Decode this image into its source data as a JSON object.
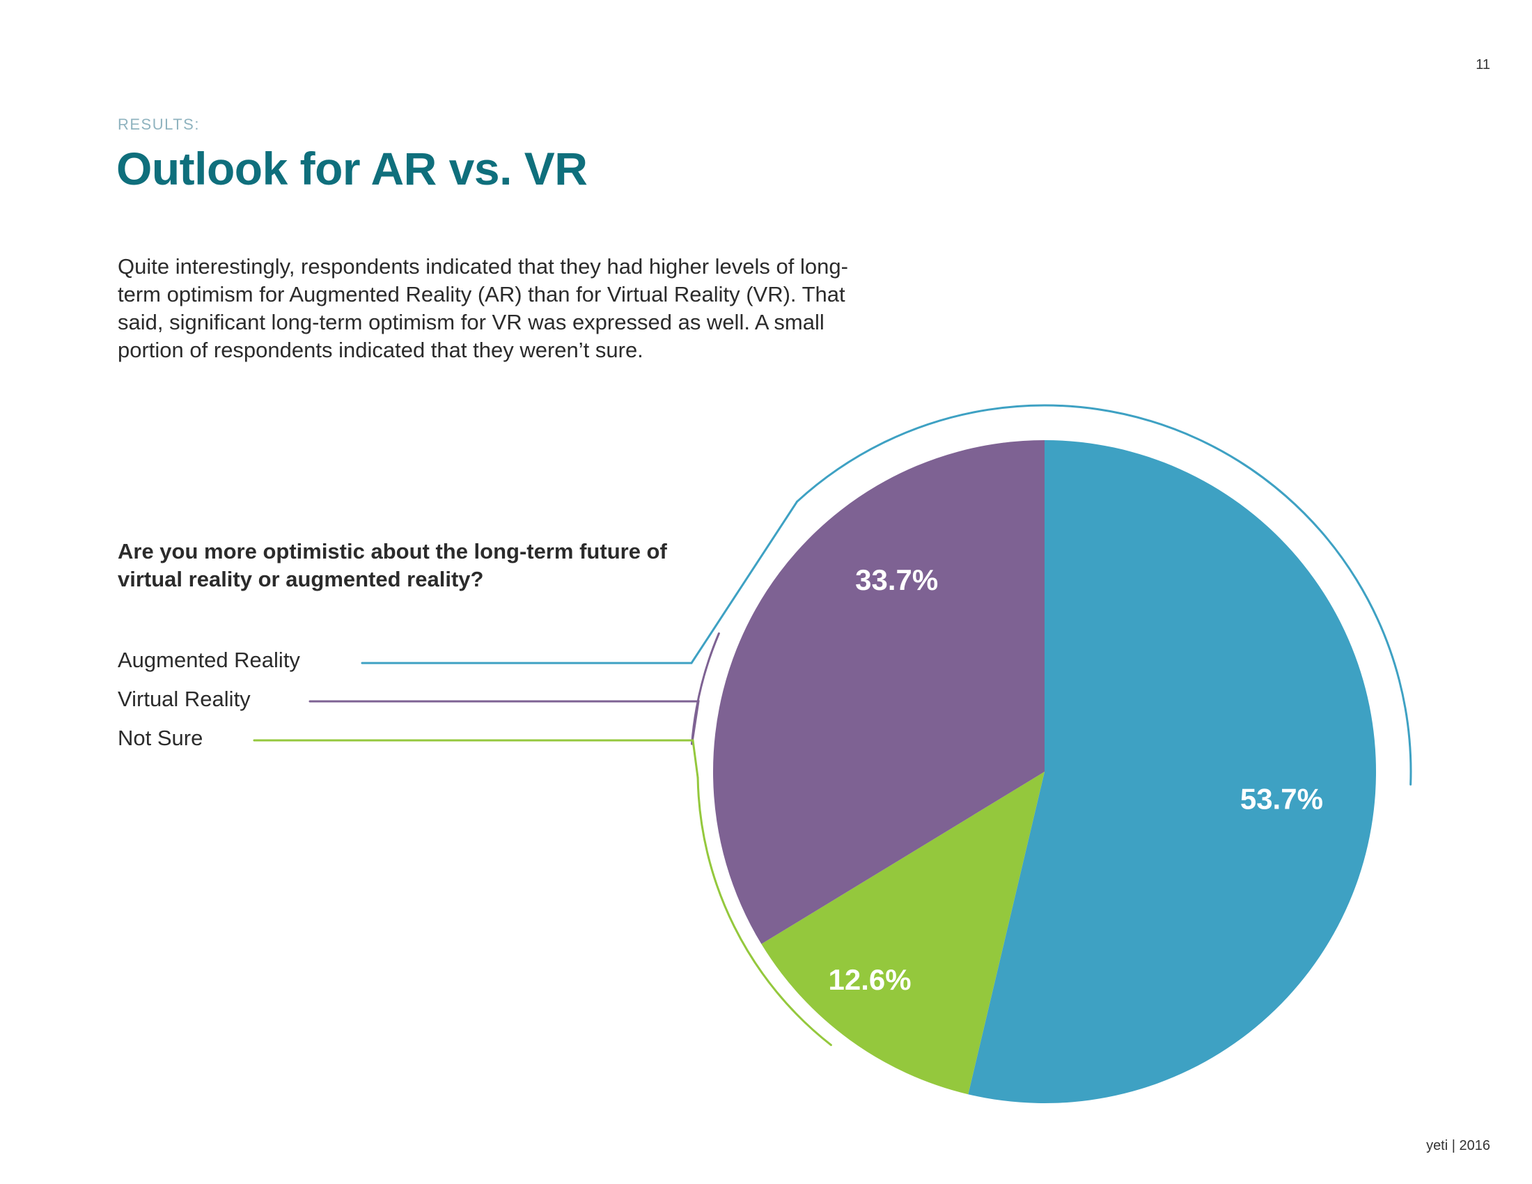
{
  "page": {
    "number": "11",
    "section_label": "RESULTS:",
    "title": "Outlook for AR vs. VR",
    "intro": "Quite interestingly, respondents indicated that they had higher levels of long-term optimism for Augmented Reality (AR) than for Virtual Reality (VR). That said, significant long-term optimism for VR was expressed as well. A small portion of respondents indicated that they weren’t sure.",
    "question": "Are you more optimistic about the long-term future of virtual reality or augmented reality?",
    "footer": "yeti | 2016"
  },
  "colors": {
    "title": "#0f6f7c",
    "augmented": "#3ea1c3",
    "virtual": "#7e6293",
    "not_sure": "#94c83d"
  },
  "chart_data": {
    "type": "pie",
    "title": "Are you more optimistic about the long-term future of virtual reality or augmented reality?",
    "categories": [
      "Augmented Reality",
      "Virtual Reality",
      "Not Sure"
    ],
    "values": [
      53.7,
      33.7,
      12.6
    ],
    "labels": [
      "53.7%",
      "33.7%",
      "12.6%"
    ],
    "slice_order_clockwise_from_top": [
      "Augmented Reality",
      "Not Sure",
      "Virtual Reality"
    ],
    "legend_position": "left"
  }
}
